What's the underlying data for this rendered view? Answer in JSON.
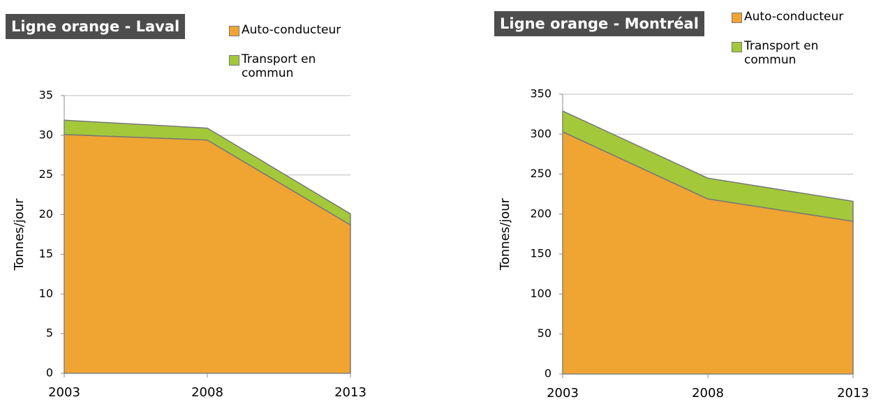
{
  "chart_data": [
    {
      "type": "area",
      "title": "Ligne orange - Laval",
      "y_label": "Tonnes/jour",
      "categories": [
        "2003",
        "2008",
        "2013"
      ],
      "series": [
        {
          "name": "Auto-conducteur",
          "color": "#f0a431",
          "values": [
            30.1,
            29.4,
            18.7
          ]
        },
        {
          "name": "Transport en commun",
          "color": "#a3c93a",
          "values": [
            1.8,
            1.5,
            1.4
          ]
        }
      ],
      "ylim": [
        0,
        35
      ],
      "yticks": [
        0,
        5,
        10,
        15,
        20,
        25,
        30,
        35
      ],
      "grid": true,
      "stacked": true
    },
    {
      "type": "area",
      "title": "Ligne orange - Montréal",
      "y_label": "Tonnes/jour",
      "categories": [
        "2003",
        "2008",
        "2013"
      ],
      "series": [
        {
          "name": "Auto-conducteur",
          "color": "#f0a431",
          "values": [
            303,
            219,
            191
          ]
        },
        {
          "name": "Transport en commun",
          "color": "#a3c93a",
          "values": [
            26,
            26,
            25
          ]
        }
      ],
      "ylim": [
        0,
        350
      ],
      "yticks": [
        0,
        50,
        100,
        150,
        200,
        250,
        300,
        350
      ],
      "grid": true,
      "stacked": true
    }
  ]
}
